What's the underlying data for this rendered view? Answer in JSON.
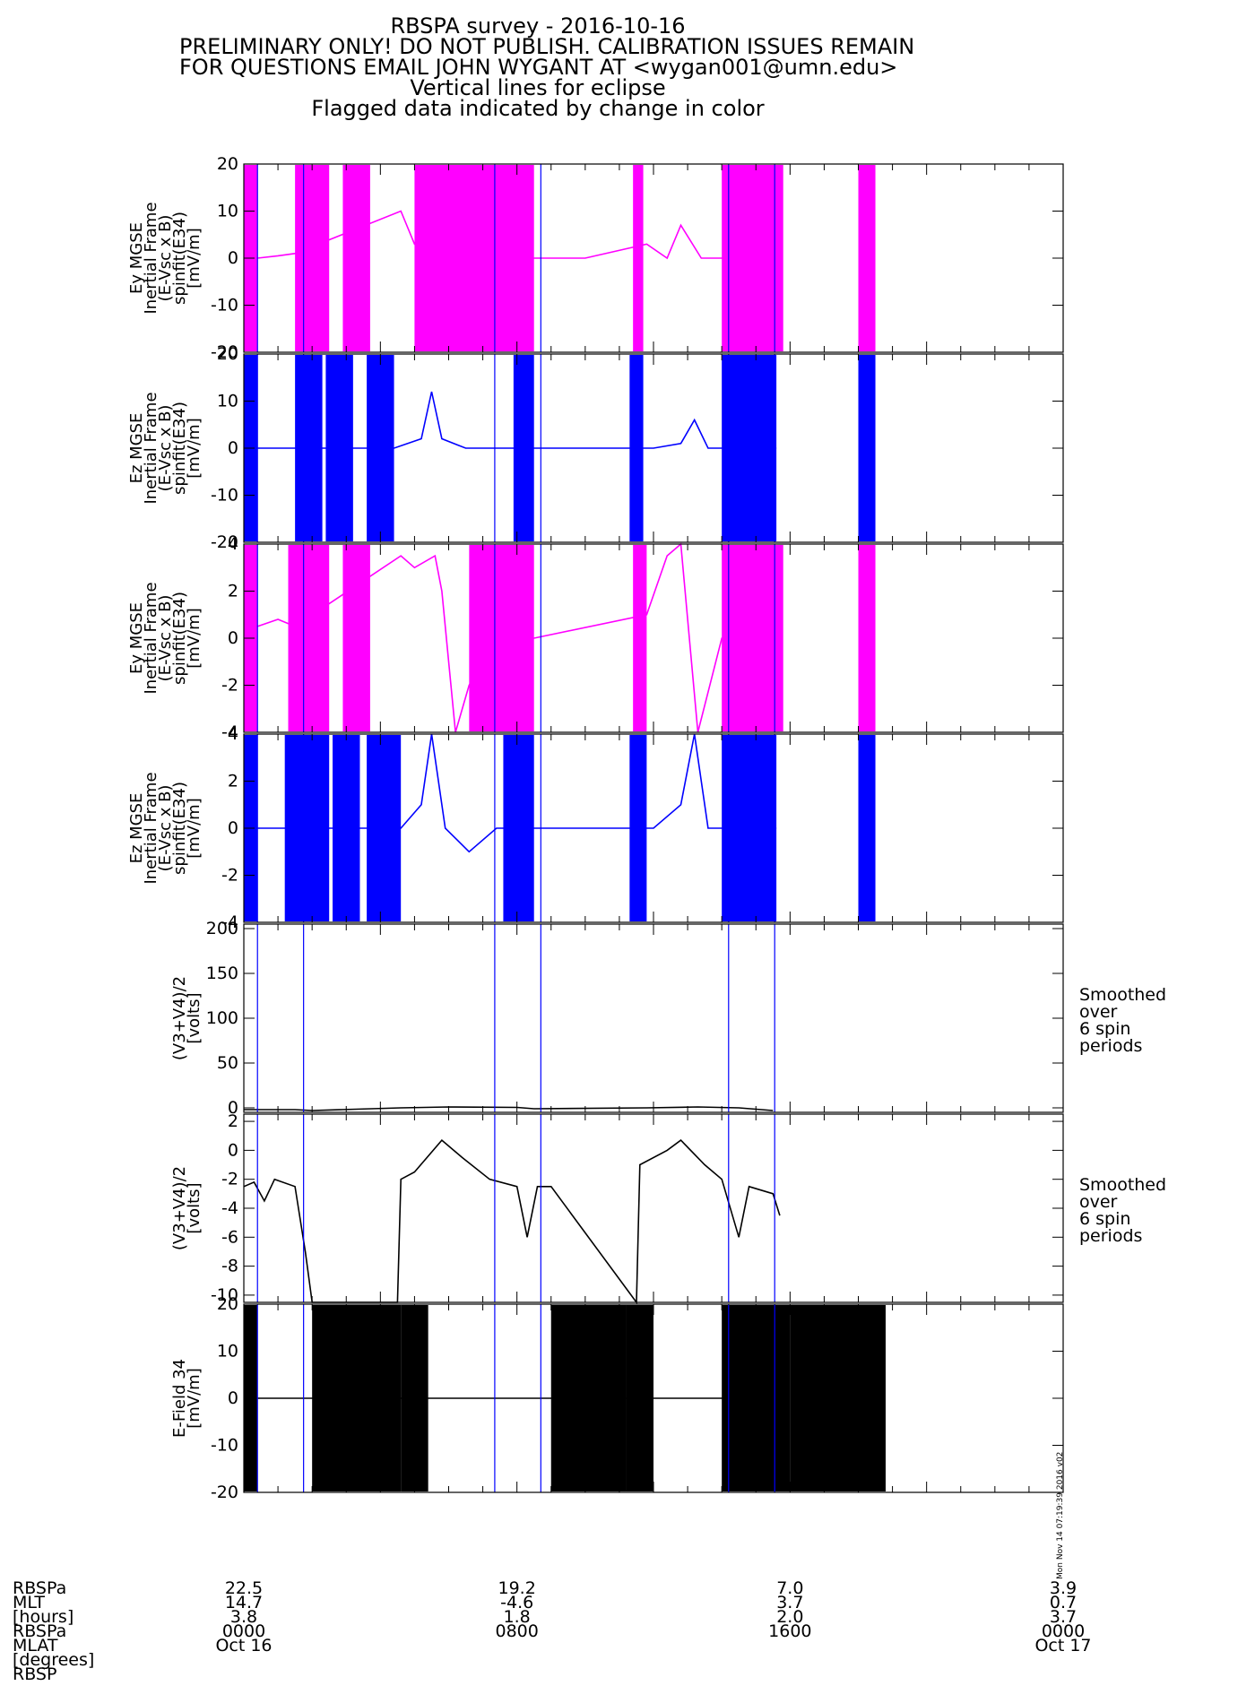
{
  "header": {
    "title": "RBSPA survey - 2016-10-16",
    "warning1": "PRELIMINARY ONLY! DO NOT PUBLISH. CALIBRATION ISSUES REMAIN",
    "warning2": "FOR QUESTIONS EMAIL JOHN WYGANT AT <wygan001@umn.edu>",
    "note1": "Vertical lines for eclipse",
    "note2": "Flagged data indicated by change in color"
  },
  "footer": {
    "labels": [
      "RBSPa",
      "MLT",
      "[hours]",
      "RBSPa",
      "MLAT",
      "[degrees]",
      "RBSP"
    ],
    "columns": [
      {
        "tick": "0",
        "mlt": "22.5",
        "mlat": "14.7",
        "r": "3.8",
        "time": "0000",
        "date": "Oct 16"
      },
      {
        "tick": "8",
        "mlt": "19.2",
        "mlat": "-4.6",
        "r": "1.8",
        "time": "0800",
        "date": ""
      },
      {
        "tick": "16",
        "mlt": "7.0",
        "mlat": "3.7",
        "r": "2.0",
        "time": "1600",
        "date": ""
      },
      {
        "tick": "24",
        "mlt": "3.9",
        "mlat": "0.7",
        "r": "3.7",
        "time": "0000",
        "date": "Oct 17"
      }
    ]
  },
  "timestamp": "Mon Nov 14 07:19:39 2016 v02",
  "chart_data": {
    "type": "line",
    "x_unit": "hours",
    "x_range": [
      0,
      24
    ],
    "eclipse_lines_hours": [
      0.4,
      1.75,
      7.35,
      8.7,
      14.2,
      15.55
    ],
    "colors": {
      "magenta": "#ff00ff",
      "blue": "#0000ff",
      "black": "#000000",
      "eclipse": "#0000ff"
    },
    "panels": [
      {
        "id": "ey1",
        "ylabel": [
          "Ey MGSE",
          "Inertial Frame",
          "(E-Vsc x B)",
          "spinfit(E34)",
          "[mV/m]"
        ],
        "ylim": [
          -20,
          20
        ],
        "yticks": [
          -20,
          -10,
          0,
          10,
          20
        ],
        "color": "magenta",
        "bursts": [
          [
            0.0,
            0.4
          ],
          [
            1.5,
            2.5
          ],
          [
            2.9,
            3.7
          ],
          [
            5.0,
            8.5
          ],
          [
            11.4,
            11.7
          ],
          [
            14.0,
            15.8
          ],
          [
            18.0,
            18.5
          ]
        ],
        "baseline": [
          [
            0.4,
            0.0
          ],
          [
            1.0,
            0.5
          ],
          [
            1.5,
            1.0
          ],
          [
            4.6,
            10.0
          ],
          [
            5.0,
            3.0
          ],
          [
            5.4,
            1.0
          ],
          [
            6.0,
            0.0
          ],
          [
            6.5,
            -7.0
          ],
          [
            7.0,
            -3.0
          ],
          [
            8.5,
            0.0
          ],
          [
            10.0,
            0.0
          ],
          [
            11.8,
            3.0
          ],
          [
            12.4,
            0.0
          ],
          [
            12.8,
            7.0
          ],
          [
            13.4,
            0.0
          ],
          [
            14.5,
            0.0
          ],
          [
            15.0,
            1.0
          ],
          [
            15.6,
            1.0
          ]
        ],
        "right_note": []
      },
      {
        "id": "ez1",
        "ylabel": [
          "Ez MGSE",
          "Inertial Frame",
          "(E-Vsc x B)",
          "spinfit(E34)",
          "[mV/m]"
        ],
        "ylim": [
          -20,
          20
        ],
        "yticks": [
          -20,
          -10,
          0,
          10,
          20
        ],
        "color": "blue",
        "bursts": [
          [
            0.0,
            0.4
          ],
          [
            1.5,
            2.3
          ],
          [
            2.4,
            3.2
          ],
          [
            3.6,
            4.4
          ],
          [
            7.9,
            8.5
          ],
          [
            11.3,
            11.7
          ],
          [
            14.0,
            15.6
          ],
          [
            18.0,
            18.5
          ]
        ],
        "baseline": [
          [
            0.4,
            0.0
          ],
          [
            1.5,
            0.0
          ],
          [
            4.4,
            0.0
          ],
          [
            5.2,
            2.0
          ],
          [
            5.5,
            12.0
          ],
          [
            5.8,
            2.0
          ],
          [
            6.5,
            0.0
          ],
          [
            8.5,
            0.0
          ],
          [
            12.0,
            0.0
          ],
          [
            12.8,
            1.0
          ],
          [
            13.2,
            6.0
          ],
          [
            13.6,
            0.0
          ],
          [
            15.6,
            0.0
          ]
        ],
        "right_note": []
      },
      {
        "id": "ey2",
        "ylabel": [
          "Ey MGSE",
          "Inertial Frame",
          "(E-Vsc x B)",
          "spinfit(E34)",
          "[mV/m]"
        ],
        "ylim": [
          -4,
          4
        ],
        "yticks": [
          -4,
          -2,
          0,
          2,
          4
        ],
        "color": "magenta",
        "bursts": [
          [
            0.0,
            0.4
          ],
          [
            1.3,
            2.5
          ],
          [
            2.9,
            3.7
          ],
          [
            6.6,
            8.5
          ],
          [
            11.4,
            11.8
          ],
          [
            14.0,
            15.8
          ],
          [
            18.0,
            18.5
          ]
        ],
        "baseline": [
          [
            0.4,
            0.5
          ],
          [
            1.0,
            0.8
          ],
          [
            1.5,
            0.5
          ],
          [
            4.6,
            3.5
          ],
          [
            5.0,
            3.0
          ],
          [
            5.6,
            3.5
          ],
          [
            5.8,
            2.0
          ],
          [
            6.2,
            -4.0
          ],
          [
            6.6,
            -2.0
          ],
          [
            7.4,
            0.0
          ],
          [
            8.5,
            0.0
          ],
          [
            11.8,
            1.0
          ],
          [
            12.4,
            3.5
          ],
          [
            12.8,
            4.0
          ],
          [
            13.3,
            -4.0
          ],
          [
            14.0,
            0.0
          ],
          [
            15.0,
            0.0
          ],
          [
            15.6,
            0.0
          ]
        ],
        "right_note": []
      },
      {
        "id": "ez2",
        "ylabel": [
          "Ez MGSE",
          "Inertial Frame",
          "(E-Vsc x B)",
          "spinfit(E34)",
          "[mV/m]"
        ],
        "ylim": [
          -4,
          4
        ],
        "yticks": [
          -4,
          -2,
          0,
          2,
          4
        ],
        "color": "blue",
        "bursts": [
          [
            0.0,
            0.4
          ],
          [
            1.2,
            2.5
          ],
          [
            2.6,
            3.4
          ],
          [
            3.6,
            4.6
          ],
          [
            7.6,
            8.5
          ],
          [
            11.3,
            11.8
          ],
          [
            14.0,
            15.6
          ],
          [
            18.0,
            18.5
          ]
        ],
        "baseline": [
          [
            0.4,
            0.0
          ],
          [
            1.5,
            0.0
          ],
          [
            4.6,
            0.0
          ],
          [
            5.2,
            1.0
          ],
          [
            5.5,
            4.0
          ],
          [
            5.9,
            0.0
          ],
          [
            6.6,
            -1.0
          ],
          [
            7.4,
            0.0
          ],
          [
            8.5,
            0.0
          ],
          [
            12.0,
            0.0
          ],
          [
            12.8,
            1.0
          ],
          [
            13.2,
            4.0
          ],
          [
            13.6,
            0.0
          ],
          [
            15.6,
            0.0
          ]
        ],
        "right_note": []
      },
      {
        "id": "v34a",
        "ylabel": [
          "(V3+V4)/2",
          "[volts]"
        ],
        "ylim": [
          -5,
          205
        ],
        "yticks": [
          0,
          50,
          100,
          150,
          200
        ],
        "color": "black",
        "bursts": [],
        "baseline": [
          [
            0.0,
            -2.0
          ],
          [
            1.5,
            -2.0
          ],
          [
            2.0,
            -3.0
          ],
          [
            4.6,
            0.0
          ],
          [
            6.0,
            1.0
          ],
          [
            8.0,
            0.5
          ],
          [
            8.5,
            -1.0
          ],
          [
            11.8,
            0.0
          ],
          [
            13.3,
            1.0
          ],
          [
            14.5,
            0.0
          ],
          [
            15.5,
            -3.0
          ]
        ],
        "right_note": [
          "Smoothed",
          "over",
          "6 spin",
          "periods"
        ]
      },
      {
        "id": "v34b",
        "ylabel": [
          "(V3+V4)/2",
          "[volts]"
        ],
        "ylim": [
          -10.5,
          2.5
        ],
        "yticks": [
          -10,
          -8,
          -6,
          -4,
          -2,
          0,
          2
        ],
        "color": "black",
        "bursts": [],
        "baseline": [
          [
            0.0,
            -2.5
          ],
          [
            0.3,
            -2.2
          ],
          [
            0.6,
            -3.5
          ],
          [
            0.9,
            -2.0
          ],
          [
            1.5,
            -2.5
          ],
          [
            1.8,
            -7.0
          ],
          [
            2.0,
            -10.5
          ],
          [
            4.5,
            -10.5
          ],
          [
            4.6,
            -2.0
          ],
          [
            5.0,
            -1.5
          ],
          [
            5.8,
            0.7
          ],
          [
            6.4,
            -0.5
          ],
          [
            7.2,
            -2.0
          ],
          [
            8.0,
            -2.5
          ],
          [
            8.3,
            -6.0
          ],
          [
            8.6,
            -2.5
          ],
          [
            9.0,
            -2.5
          ],
          [
            11.5,
            -10.5
          ],
          [
            11.6,
            -1.0
          ],
          [
            12.4,
            0.0
          ],
          [
            12.8,
            0.7
          ],
          [
            13.5,
            -1.0
          ],
          [
            14.0,
            -2.0
          ],
          [
            14.5,
            -6.0
          ],
          [
            14.8,
            -2.5
          ],
          [
            15.5,
            -3.0
          ],
          [
            15.7,
            -4.5
          ]
        ],
        "right_note": [
          "Smoothed",
          "over",
          "6 spin",
          "periods"
        ]
      },
      {
        "id": "e34",
        "ylabel": [
          "E-Field 34",
          "[mV/m]"
        ],
        "ylim": [
          -20,
          20
        ],
        "yticks": [
          -20,
          -10,
          0,
          10,
          20
        ],
        "color": "black",
        "bursts": [
          [
            0.0,
            0.4
          ],
          [
            2.0,
            4.6
          ],
          [
            4.6,
            5.4
          ],
          [
            9.0,
            11.2
          ],
          [
            11.2,
            12.0
          ],
          [
            14.0,
            16.0
          ],
          [
            16.0,
            18.8
          ]
        ],
        "baseline": [
          [
            0.4,
            0.0
          ],
          [
            2.0,
            0.0
          ],
          [
            5.4,
            0.0
          ],
          [
            9.0,
            0.0
          ],
          [
            11.2,
            0.0
          ],
          [
            14.0,
            0.0
          ],
          [
            15.6,
            0.0
          ]
        ],
        "right_note": []
      }
    ]
  }
}
